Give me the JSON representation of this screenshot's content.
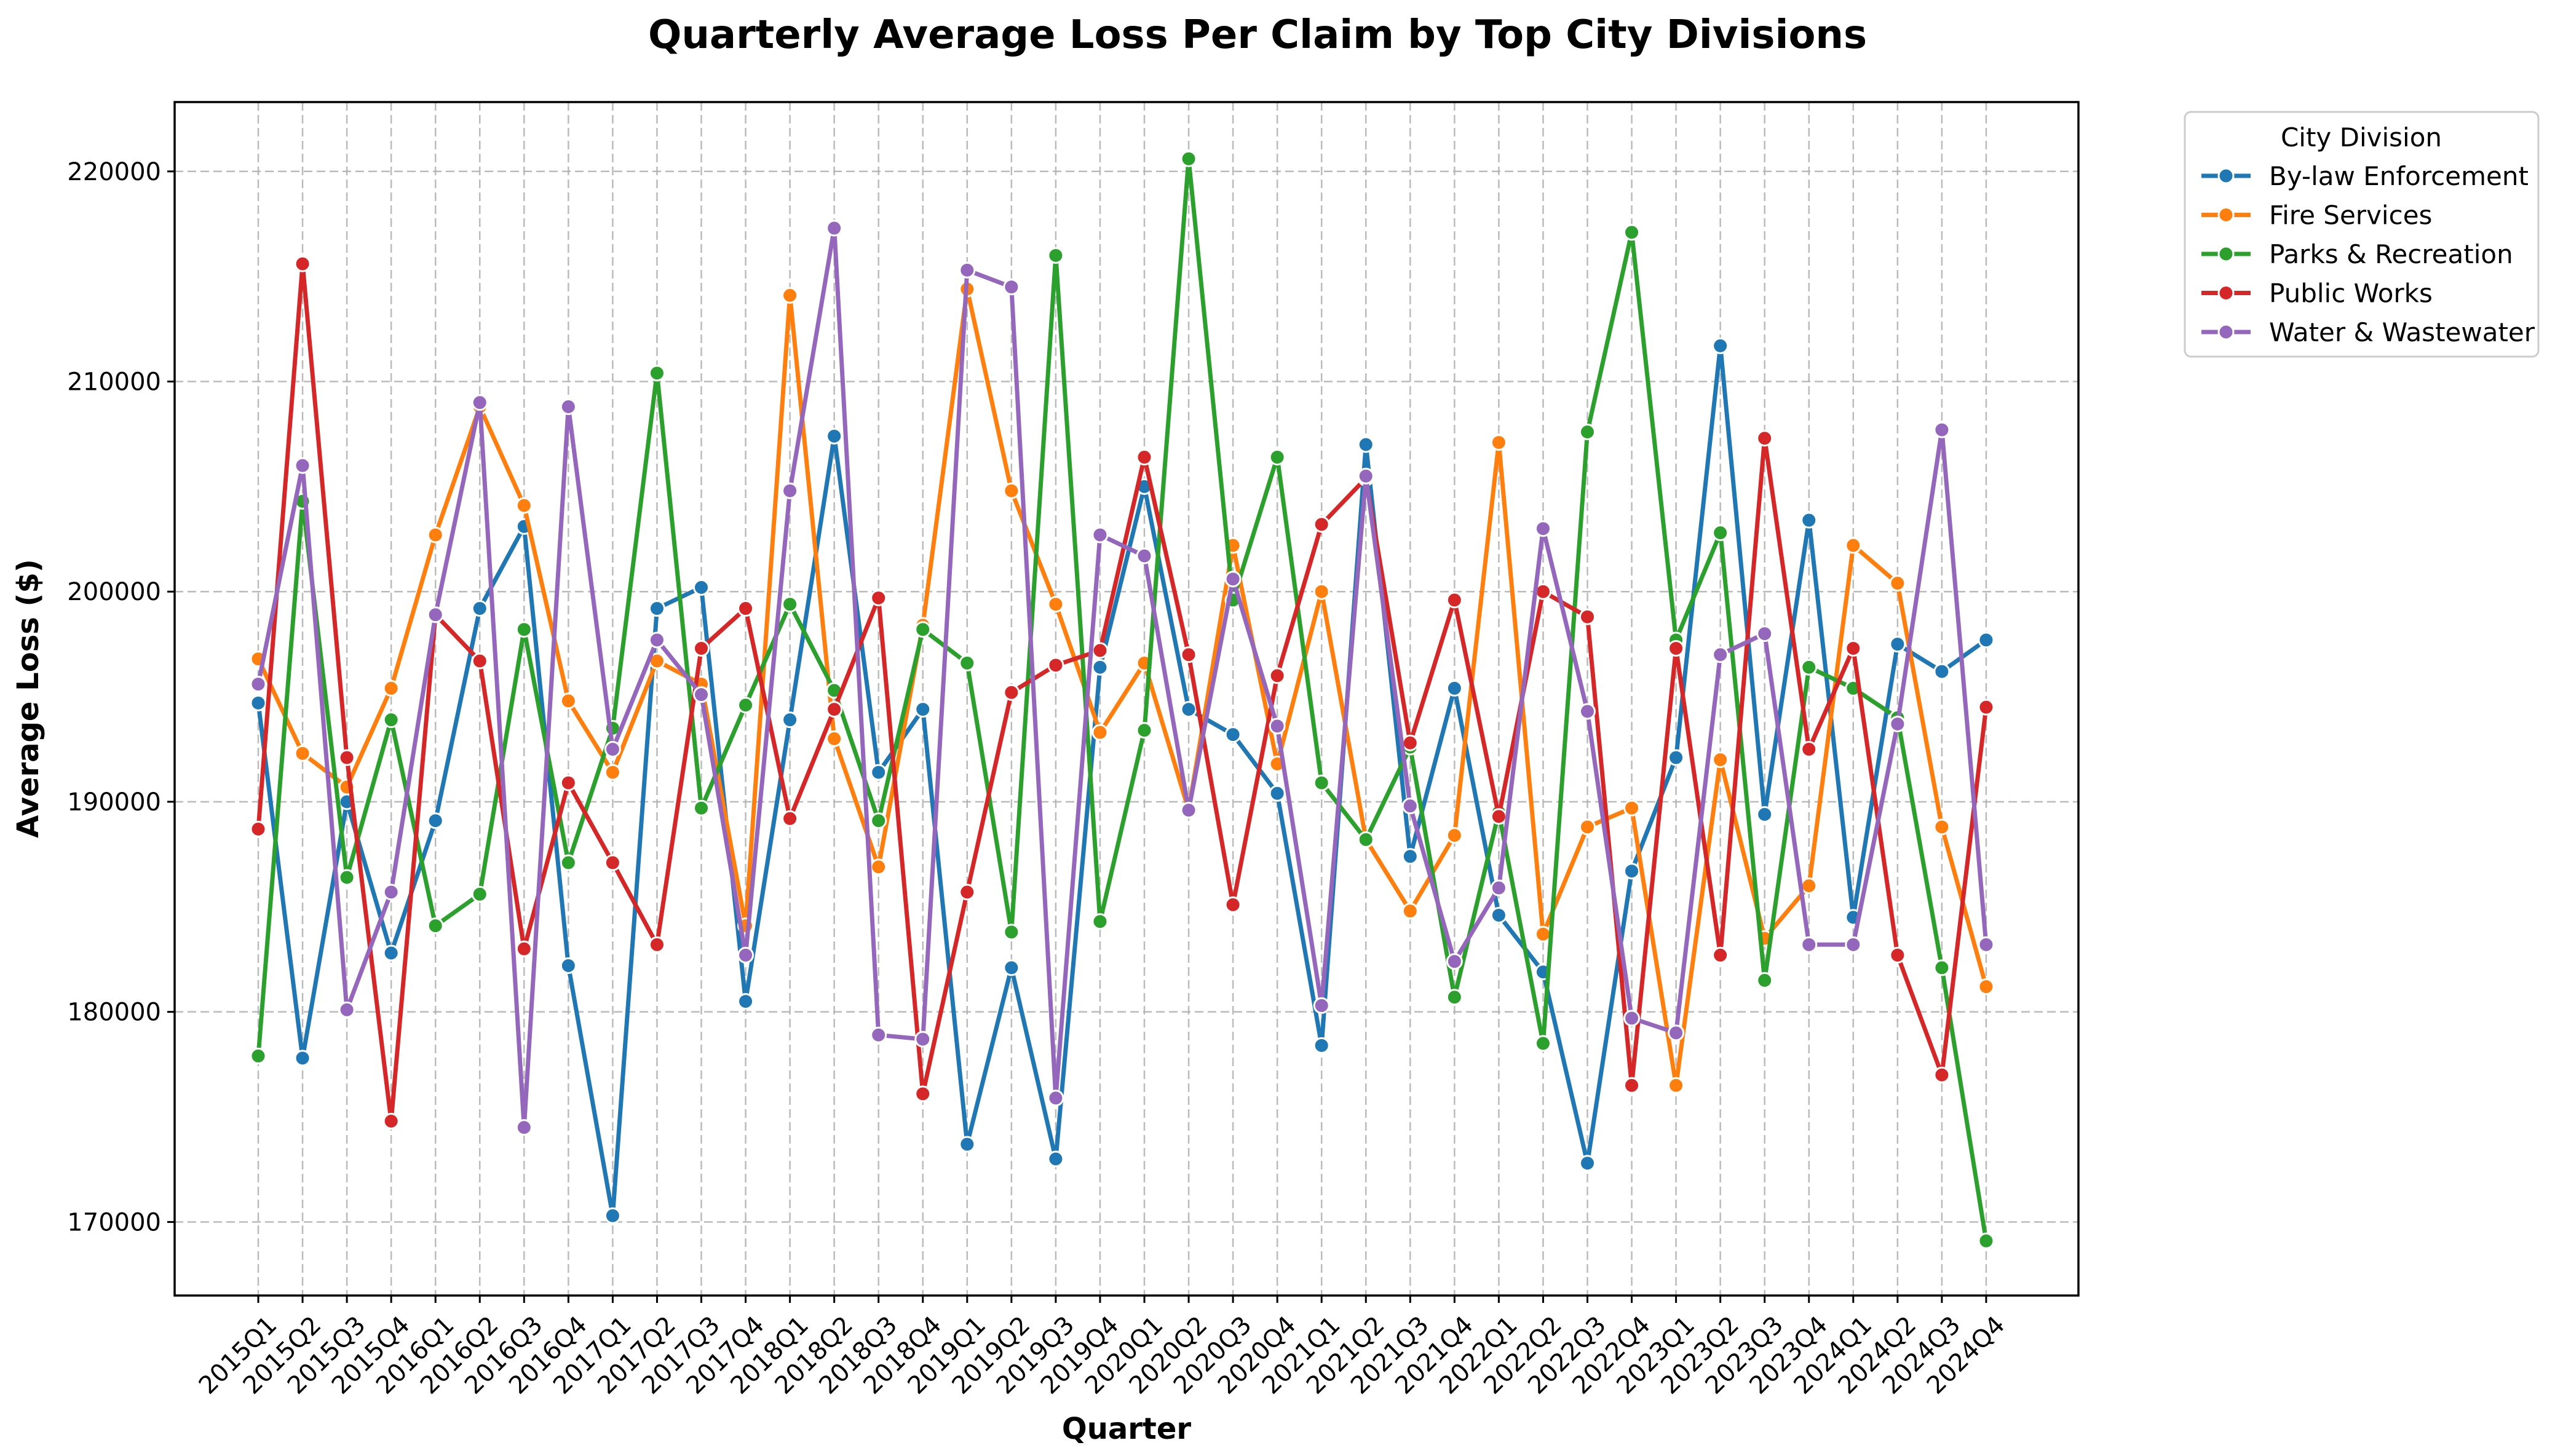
{
  "chart_data": {
    "type": "line",
    "title": "Quarterly Average Loss Per Claim by Top City Divisions",
    "xlabel": "Quarter",
    "ylabel": "Average Loss ($)",
    "categories": [
      "2015Q1",
      "2015Q2",
      "2015Q3",
      "2015Q4",
      "2016Q1",
      "2016Q2",
      "2016Q3",
      "2016Q4",
      "2017Q1",
      "2017Q2",
      "2017Q3",
      "2017Q4",
      "2018Q1",
      "2018Q2",
      "2018Q3",
      "2018Q4",
      "2019Q1",
      "2019Q2",
      "2019Q3",
      "2019Q4",
      "2020Q1",
      "2020Q2",
      "2020Q3",
      "2020Q4",
      "2021Q1",
      "2021Q2",
      "2021Q3",
      "2021Q4",
      "2022Q1",
      "2022Q2",
      "2022Q3",
      "2022Q4",
      "2023Q1",
      "2023Q2",
      "2023Q3",
      "2023Q4",
      "2024Q1",
      "2024Q2",
      "2024Q3",
      "2024Q4"
    ],
    "ylim": [
      166500,
      223300
    ],
    "yticks": [
      170000,
      180000,
      190000,
      200000,
      210000,
      220000
    ],
    "grid": true,
    "legend": {
      "title": "City Division",
      "placement": "outside-top-right"
    },
    "series": [
      {
        "name": "By-law Enforcement",
        "color": "#1f77b4",
        "values": [
          194700,
          177800,
          190000,
          182800,
          189100,
          199200,
          203100,
          182200,
          170300,
          199200,
          200200,
          180500,
          193900,
          207400,
          191400,
          194400,
          173700,
          182100,
          173000,
          196400,
          205000,
          194400,
          193200,
          190400,
          178400,
          207000,
          187400,
          195400,
          184600,
          181900,
          172800,
          186700,
          192100,
          211700,
          189400,
          203400,
          184500,
          197500,
          196200,
          197700
        ]
      },
      {
        "name": "Fire Services",
        "color": "#ff7f0e",
        "values": [
          196800,
          192300,
          190700,
          195400,
          202700,
          208800,
          204100,
          194800,
          191400,
          196700,
          195600,
          184100,
          214100,
          193000,
          186900,
          198400,
          214400,
          204800,
          199400,
          193300,
          196600,
          189600,
          202200,
          191800,
          200000,
          188200,
          184800,
          188400,
          207100,
          183700,
          188800,
          189700,
          176500,
          192000,
          183500,
          186000,
          202200,
          200400,
          188800,
          181200
        ]
      },
      {
        "name": "Parks & Recreation",
        "color": "#2ca02c",
        "values": [
          177900,
          204300,
          186400,
          193900,
          184100,
          185600,
          198200,
          187100,
          193500,
          210400,
          189700,
          194600,
          199400,
          195300,
          189100,
          198200,
          196600,
          183800,
          216000,
          184300,
          193400,
          220600,
          199600,
          206400,
          190900,
          188200,
          192600,
          180700,
          189500,
          178500,
          207600,
          217100,
          197700,
          202800,
          181500,
          196400,
          195400,
          194000,
          182100,
          169100
        ]
      },
      {
        "name": "Public Works",
        "color": "#d62728",
        "values": [
          188700,
          215600,
          192100,
          174800,
          198900,
          196700,
          183000,
          190900,
          187100,
          183200,
          197300,
          199200,
          189200,
          194400,
          199700,
          176100,
          185700,
          195200,
          196500,
          197200,
          206400,
          197000,
          185100,
          196000,
          203200,
          205400,
          192800,
          199600,
          189300,
          200000,
          198800,
          176500,
          197300,
          182700,
          207300,
          192500,
          197300,
          182700,
          177000,
          194500
        ]
      },
      {
        "name": "Water & Wastewater",
        "color": "#9467bd",
        "values": [
          195600,
          206000,
          180100,
          185700,
          198900,
          209000,
          174500,
          208800,
          192500,
          197700,
          195100,
          182700,
          204800,
          217300,
          178900,
          178700,
          215300,
          214500,
          175900,
          202700,
          201700,
          189600,
          200600,
          193600,
          180300,
          205500,
          189800,
          182400,
          185900,
          203000,
          194300,
          179700,
          179000,
          197000,
          198000,
          183200,
          183200,
          193700,
          207700,
          183200
        ]
      }
    ]
  }
}
